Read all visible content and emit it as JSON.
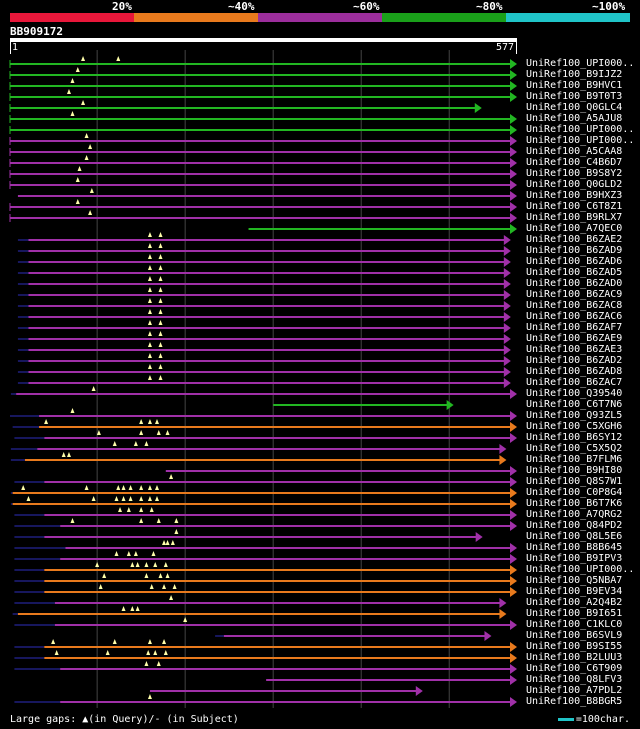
{
  "scale": {
    "segments": [
      {
        "color": "#e8173a"
      },
      {
        "color": "#e87a1d"
      },
      {
        "color": "#9c2e9c"
      },
      {
        "color": "#1aa01a"
      },
      {
        "color": "#20c4c8"
      }
    ],
    "labels": [
      "20%",
      "~40%",
      "~60%",
      "~80%",
      "~100%"
    ]
  },
  "query": {
    "id": "BB909172",
    "start": "1",
    "end": "577",
    "length": 577
  },
  "colors": {
    "green": "#22b622",
    "purple": "#a030a8",
    "orange": "#e87a1d",
    "navy": "#17175e",
    "gap": "#ffffaa",
    "grid": "#444444"
  },
  "hits": [
    {
      "name": "UniRef100_UPI000..",
      "color": "green",
      "qs": 1,
      "qe": 577,
      "tail": 0,
      "gaps": [
        84,
        124
      ]
    },
    {
      "name": "UniRef100_B9IJZ2",
      "color": "green",
      "qs": 1,
      "qe": 577,
      "tail": 0,
      "gaps": [
        78
      ]
    },
    {
      "name": "UniRef100_B9HVC1",
      "color": "green",
      "qs": 1,
      "qe": 577,
      "tail": 0,
      "gaps": [
        72
      ]
    },
    {
      "name": "UniRef100_B9T0T3",
      "color": "green",
      "qs": 1,
      "qe": 577,
      "tail": 0,
      "gaps": [
        68
      ]
    },
    {
      "name": "UniRef100_Q0GLC4",
      "color": "green",
      "qs": 1,
      "qe": 537,
      "tail": 0,
      "gaps": [
        84
      ]
    },
    {
      "name": "UniRef100_A5AJU8",
      "color": "green",
      "qs": 1,
      "qe": 577,
      "tail": 0,
      "gaps": [
        72
      ]
    },
    {
      "name": "UniRef100_UPI000..",
      "color": "green",
      "qs": 1,
      "qe": 577,
      "tail": 0,
      "gaps": []
    },
    {
      "name": "UniRef100_UPI000..",
      "color": "purple",
      "qs": 1,
      "qe": 577,
      "tail": 0,
      "gaps": [
        88
      ]
    },
    {
      "name": "UniRef100_A5CAA8",
      "color": "purple",
      "qs": 1,
      "qe": 577,
      "tail": 0,
      "gaps": [
        92
      ]
    },
    {
      "name": "UniRef100_C4B6D7",
      "color": "purple",
      "qs": 1,
      "qe": 577,
      "tail": 0,
      "gaps": [
        88
      ]
    },
    {
      "name": "UniRef100_B9S8Y2",
      "color": "purple",
      "qs": 1,
      "qe": 577,
      "tail": 0,
      "gaps": [
        80
      ]
    },
    {
      "name": "UniRef100_Q0GLD2",
      "color": "purple",
      "qs": 1,
      "qe": 577,
      "tail": 0,
      "gaps": [
        78
      ]
    },
    {
      "name": "UniRef100_B9HXZ3",
      "color": "purple",
      "qs": 10,
      "qe": 577,
      "tail": 0,
      "gaps": [
        94
      ]
    },
    {
      "name": "UniRef100_C6T8Z1",
      "color": "purple",
      "qs": 1,
      "qe": 577,
      "tail": 0,
      "gaps": [
        78
      ]
    },
    {
      "name": "UniRef100_B9RLX7",
      "color": "purple",
      "qs": 1,
      "qe": 577,
      "tail": 0,
      "gaps": [
        92
      ]
    },
    {
      "name": "UniRef100_A7QEC0",
      "color": "green",
      "qs": 272,
      "qe": 577,
      "tail": 0,
      "gaps": []
    },
    {
      "name": "UniRef100_B6ZAE2",
      "color": "purple",
      "qs": 22,
      "qe": 570,
      "tail": 12,
      "gaps": [
        160,
        172
      ]
    },
    {
      "name": "UniRef100_B6ZAD9",
      "color": "purple",
      "qs": 22,
      "qe": 570,
      "tail": 12,
      "gaps": [
        160,
        172
      ]
    },
    {
      "name": "UniRef100_B6ZAD6",
      "color": "purple",
      "qs": 22,
      "qe": 570,
      "tail": 12,
      "gaps": [
        160,
        172
      ]
    },
    {
      "name": "UniRef100_B6ZAD5",
      "color": "purple",
      "qs": 22,
      "qe": 570,
      "tail": 12,
      "gaps": [
        160,
        172
      ]
    },
    {
      "name": "UniRef100_B6ZAD0",
      "color": "purple",
      "qs": 22,
      "qe": 570,
      "tail": 12,
      "gaps": [
        160,
        172
      ]
    },
    {
      "name": "UniRef100_B6ZAC9",
      "color": "purple",
      "qs": 22,
      "qe": 570,
      "tail": 12,
      "gaps": [
        160,
        172
      ]
    },
    {
      "name": "UniRef100_B6ZAC8",
      "color": "purple",
      "qs": 22,
      "qe": 570,
      "tail": 12,
      "gaps": [
        160,
        172
      ]
    },
    {
      "name": "UniRef100_B6ZAC6",
      "color": "purple",
      "qs": 22,
      "qe": 570,
      "tail": 12,
      "gaps": [
        160,
        172
      ]
    },
    {
      "name": "UniRef100_B6ZAF7",
      "color": "purple",
      "qs": 22,
      "qe": 570,
      "tail": 12,
      "gaps": [
        160,
        172
      ]
    },
    {
      "name": "UniRef100_B6ZAE9",
      "color": "purple",
      "qs": 22,
      "qe": 570,
      "tail": 12,
      "gaps": [
        160,
        172
      ]
    },
    {
      "name": "UniRef100_B6ZAE3",
      "color": "purple",
      "qs": 22,
      "qe": 570,
      "tail": 12,
      "gaps": [
        160,
        172
      ]
    },
    {
      "name": "UniRef100_B6ZAD2",
      "color": "purple",
      "qs": 22,
      "qe": 570,
      "tail": 12,
      "gaps": [
        160,
        172
      ]
    },
    {
      "name": "UniRef100_B6ZAD8",
      "color": "purple",
      "qs": 22,
      "qe": 570,
      "tail": 12,
      "gaps": [
        160,
        172
      ]
    },
    {
      "name": "UniRef100_B6ZAC7",
      "color": "purple",
      "qs": 22,
      "qe": 570,
      "tail": 12,
      "gaps": [
        160,
        172
      ]
    },
    {
      "name": "UniRef100_Q39540",
      "color": "purple",
      "qs": 8,
      "qe": 577,
      "tail": 6,
      "gaps": [
        96
      ]
    },
    {
      "name": "UniRef100_C6T7N6",
      "color": "green",
      "qs": 300,
      "qe": 505,
      "tail": 0,
      "gaps": []
    },
    {
      "name": "UniRef100_Q93ZL5",
      "color": "purple",
      "qs": 34,
      "qe": 577,
      "tail": 34,
      "gaps": [
        72
      ]
    },
    {
      "name": "UniRef100_C5XGH6",
      "color": "orange",
      "qs": 34,
      "qe": 577,
      "tail": 30,
      "gaps": [
        42,
        150,
        160,
        168
      ]
    },
    {
      "name": "UniRef100_B6SY12",
      "color": "purple",
      "qs": 40,
      "qe": 577,
      "tail": 34,
      "gaps": [
        102,
        150,
        170,
        180
      ]
    },
    {
      "name": "UniRef100_C5X5Q2",
      "color": "purple",
      "qs": 32,
      "qe": 565,
      "tail": 30,
      "gaps": [
        120,
        144,
        156
      ]
    },
    {
      "name": "UniRef100_B7FLM6",
      "color": "orange",
      "qs": 18,
      "qe": 565,
      "tail": 16,
      "gaps": [
        62,
        68
      ]
    },
    {
      "name": "UniRef100_B9HI80",
      "color": "purple",
      "qs": 178,
      "qe": 577,
      "tail": 0,
      "gaps": []
    },
    {
      "name": "UniRef100_Q8S7W1",
      "color": "purple",
      "qs": 40,
      "qe": 577,
      "tail": 34,
      "gaps": [
        184
      ]
    },
    {
      "name": "UniRef100_C0P8G4",
      "color": "orange",
      "qs": 4,
      "qe": 577,
      "tail": 2,
      "gaps": [
        16,
        88,
        124,
        130,
        138,
        150,
        160,
        168
      ]
    },
    {
      "name": "UniRef100_B6T7K6",
      "color": "orange",
      "qs": 4,
      "qe": 577,
      "tail": 2,
      "gaps": [
        22,
        96,
        122,
        130,
        138,
        150,
        160,
        168
      ]
    },
    {
      "name": "UniRef100_A7QRG2",
      "color": "purple",
      "qs": 40,
      "qe": 577,
      "tail": 34,
      "gaps": [
        126,
        136,
        150,
        162
      ]
    },
    {
      "name": "UniRef100_Q84PD2",
      "color": "purple",
      "qs": 58,
      "qe": 577,
      "tail": 52,
      "gaps": [
        72,
        150,
        170,
        190
      ]
    },
    {
      "name": "UniRef100_Q8L5E6",
      "color": "purple",
      "qs": 40,
      "qe": 538,
      "tail": 34,
      "gaps": [
        190
      ]
    },
    {
      "name": "UniRef100_B8B645",
      "color": "purple",
      "qs": 64,
      "qe": 577,
      "tail": 58,
      "gaps": [
        176,
        180,
        186
      ]
    },
    {
      "name": "UniRef100_B9IPV3",
      "color": "purple",
      "qs": 58,
      "qe": 577,
      "tail": 52,
      "gaps": [
        122,
        136,
        144,
        164
      ]
    },
    {
      "name": "UniRef100_UPI000..",
      "color": "orange",
      "qs": 40,
      "qe": 577,
      "tail": 34,
      "gaps": [
        100,
        140,
        146,
        156,
        166,
        178
      ]
    },
    {
      "name": "UniRef100_Q5NBA7",
      "color": "orange",
      "qs": 40,
      "qe": 577,
      "tail": 34,
      "gaps": [
        108,
        156,
        172,
        180
      ]
    },
    {
      "name": "UniRef100_B9EV34",
      "color": "orange",
      "qs": 40,
      "qe": 577,
      "tail": 34,
      "gaps": [
        104,
        162,
        176,
        188
      ]
    },
    {
      "name": "UniRef100_A2Q4B2",
      "color": "purple",
      "qs": 52,
      "qe": 565,
      "tail": 46,
      "gaps": [
        184
      ]
    },
    {
      "name": "UniRef100_B9I651",
      "color": "orange",
      "qs": 10,
      "qe": 565,
      "tail": 6,
      "gaps": [
        130,
        140,
        146
      ]
    },
    {
      "name": "UniRef100_C1KLC0",
      "color": "purple",
      "qs": 52,
      "qe": 577,
      "tail": 46,
      "gaps": [
        200
      ]
    },
    {
      "name": "UniRef100_B6SVL9",
      "color": "purple",
      "qs": 244,
      "qe": 548,
      "tail": 10,
      "gaps": []
    },
    {
      "name": "UniRef100_B9SI55",
      "color": "orange",
      "qs": 40,
      "qe": 577,
      "tail": 34,
      "gaps": [
        50,
        120,
        160,
        176
      ]
    },
    {
      "name": "UniRef100_B2LUU3",
      "color": "orange",
      "qs": 40,
      "qe": 577,
      "tail": 34,
      "gaps": [
        54,
        112,
        158,
        166,
        178
      ]
    },
    {
      "name": "UniRef100_C6T909",
      "color": "purple",
      "qs": 58,
      "qe": 577,
      "tail": 52,
      "gaps": [
        156,
        170
      ]
    },
    {
      "name": "UniRef100_Q8LFV3",
      "color": "purple",
      "qs": 292,
      "qe": 577,
      "tail": 0,
      "gaps": []
    },
    {
      "name": "UniRef100_A7PDL2",
      "color": "purple",
      "qs": 160,
      "qe": 470,
      "tail": 0,
      "gaps": []
    },
    {
      "name": "UniRef100_B8BGR5",
      "color": "purple",
      "qs": 58,
      "qe": 577,
      "tail": 52,
      "gaps": [
        160
      ]
    }
  ],
  "footer": {
    "text": "Large gaps: ▲(in Query)/- (in Subject)"
  },
  "legend": {
    "text": "=100char."
  }
}
